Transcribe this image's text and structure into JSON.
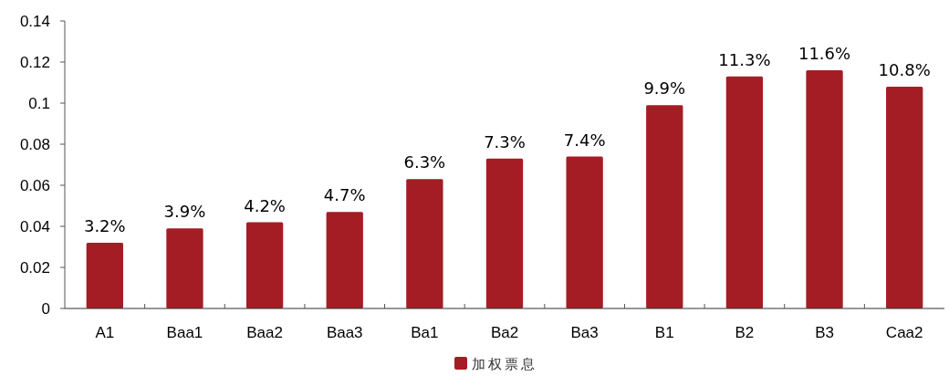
{
  "chart_data": {
    "type": "bar",
    "categories": [
      "A1",
      "Baa1",
      "Baa2",
      "Baa3",
      "Ba1",
      "Ba2",
      "Ba3",
      "B1",
      "B2",
      "B3",
      "Caa2"
    ],
    "series": [
      {
        "name": "加权票息",
        "color": "#a51d24",
        "values": [
          0.032,
          0.039,
          0.042,
          0.047,
          0.063,
          0.073,
          0.074,
          0.099,
          0.113,
          0.116,
          0.108
        ],
        "value_labels": [
          "3.2%",
          "3.9%",
          "4.2%",
          "4.7%",
          "6.3%",
          "7.3%",
          "7.4%",
          "9.9%",
          "11.3%",
          "11.6%",
          "10.8%"
        ]
      }
    ],
    "ylim": [
      0,
      0.14
    ],
    "yticks": [
      0,
      0.02,
      0.04,
      0.06,
      0.08,
      0.1,
      0.12,
      0.14
    ],
    "grid": false,
    "legend": "bottom"
  }
}
